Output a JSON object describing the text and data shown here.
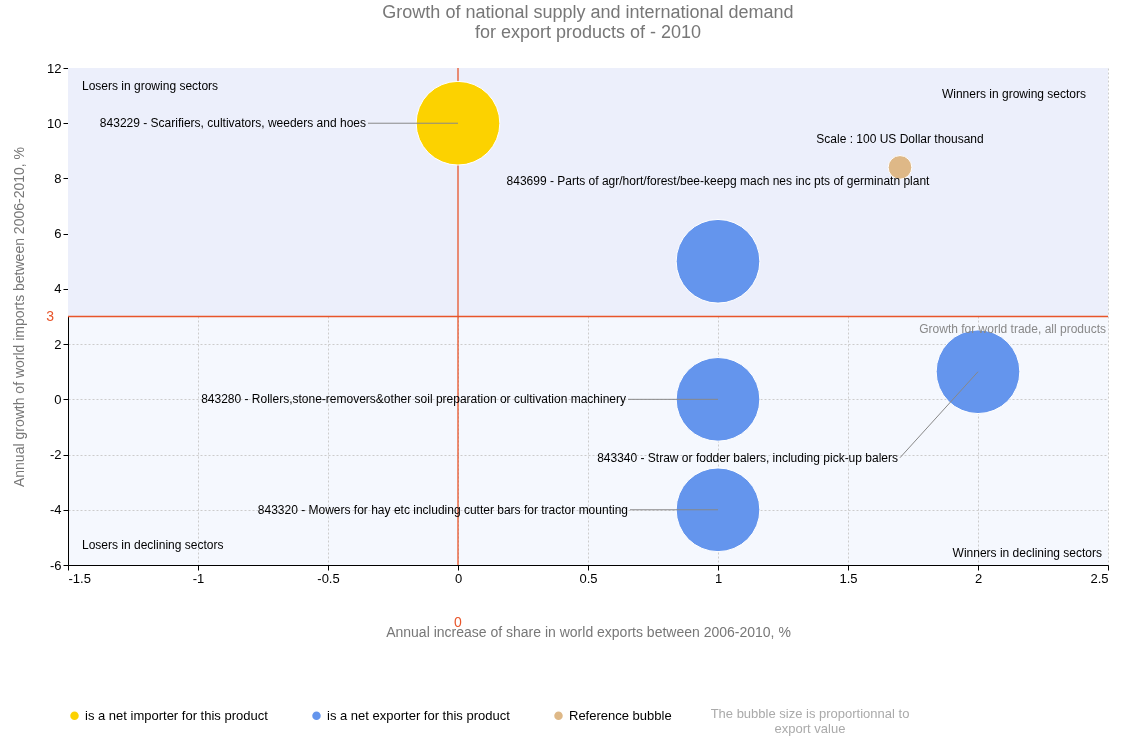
{
  "chart_data": {
    "type": "bubble",
    "title": "Growth of national supply and international demand\nfor export products of  - 2010",
    "xlabel": "Annual increase of  share in world exports between 2006-2010, %",
    "ylabel": "Annual growth of world imports between 2006-2010, %",
    "series": [
      {
        "name": "is a net importer for this product",
        "color": "#fcd200",
        "x": [
          0
        ],
        "values": [
          10
        ],
        "sizes": [
          1
        ]
      },
      {
        "name": "is a net exporter for this product",
        "color": "#6495ed",
        "x": [
          1,
          1,
          2,
          1
        ],
        "values": [
          5,
          0,
          1,
          -4
        ],
        "sizes": [
          1,
          1,
          1,
          1
        ]
      },
      {
        "name": "Reference bubble",
        "color": "#deb887",
        "x": [
          1.7
        ],
        "values": [
          8.4
        ],
        "sizes": [
          0.08
        ]
      }
    ],
    "xlim": [
      -1.5,
      2.5
    ],
    "xticks": [
      -1.5,
      -1,
      -0.5,
      0,
      0.5,
      1,
      1.5,
      2,
      2.5
    ],
    "ylim": [
      -6,
      12
    ],
    "yticks": [
      -6,
      -4,
      -2,
      0,
      2,
      4,
      6,
      8,
      10,
      12
    ],
    "grid": true,
    "legend": "bottom",
    "ref_lines": [
      {
        "axis": "x",
        "value": 0,
        "label": "0",
        "color": "#e8552a"
      },
      {
        "axis": "y",
        "value": 3,
        "label": "3",
        "color": "#e8552a"
      }
    ],
    "bands": [
      {
        "axis": "y",
        "from": 3,
        "to": 12,
        "color": "#eceffb"
      }
    ],
    "annotations": [
      {
        "text": "843229 - Scarifiers, cultivators, weeders and hoes",
        "x": 0,
        "y": 10
      },
      {
        "text": "843280 - Rollers,stone-removers&other soil preparation or cultivation machinery",
        "x": 1,
        "y": 0
      },
      {
        "text": "843340 - Straw or fodder balers, including pick-up balers",
        "x": 2,
        "y": 1
      },
      {
        "text": "843320 - Mowers for hay etc including cutter bars for tractor mounting",
        "x": 1,
        "y": -4
      },
      {
        "text": "Scale : 100 US Dollar thousand",
        "x": 1.7,
        "y": 8.4
      },
      "843699 - Parts of agr/hort/forest/bee-keepg mach nes inc pts of germinatn plant",
      "Growth for world trade, all products",
      "Losers in growing sectors",
      "Winners in growing sectors",
      "Losers in declining sectors",
      "Winners in declining sectors",
      "The bubble size is proportionnal to export value"
    ]
  }
}
